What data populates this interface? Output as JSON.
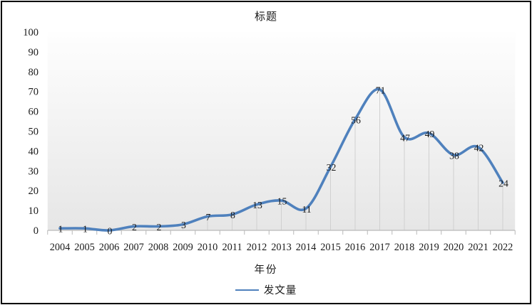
{
  "chart_data": {
    "type": "line",
    "title": "标题",
    "xlabel": "年份",
    "ylabel": "",
    "categories": [
      "2004",
      "2005",
      "2006",
      "2007",
      "2008",
      "2009",
      "2010",
      "2011",
      "2012",
      "2013",
      "2014",
      "2015",
      "2016",
      "2017",
      "2018",
      "2019",
      "2020",
      "2021",
      "2022"
    ],
    "series": [
      {
        "name": "发文量",
        "values": [
          1,
          1,
          0,
          2,
          2,
          3,
          7,
          8,
          13,
          15,
          11,
          32,
          56,
          71,
          47,
          49,
          38,
          42,
          24
        ]
      }
    ],
    "ylim": [
      0,
      100
    ],
    "ytick_step": 10,
    "yticks": [
      0,
      10,
      20,
      30,
      40,
      50,
      60,
      70,
      80,
      90,
      100
    ],
    "data_labels": true,
    "smooth": true,
    "grid": "vertical-drop-lines",
    "legend_position": "bottom",
    "colors": {
      "line": "#4F81BD",
      "drop_line": "#d0d0d0",
      "axis": "#b9b9b9",
      "text": "#1a1a1a",
      "plot_bg_top": "#fefefe",
      "plot_bg_bottom": "#e6e6e6",
      "frame_border": "#000000"
    }
  }
}
